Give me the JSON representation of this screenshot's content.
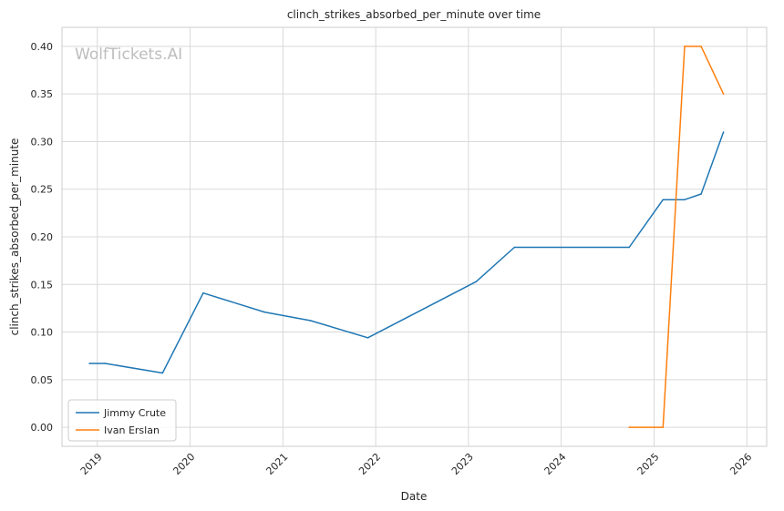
{
  "chart_data": {
    "type": "line",
    "title": "clinch_strikes_absorbed_per_minute over time",
    "xlabel": "Date",
    "ylabel": "clinch_strikes_absorbed_per_minute",
    "watermark": "WolfTickets.AI",
    "xlim": [
      "2018-08-15",
      "2026-03-20"
    ],
    "ylim": [
      -0.02,
      0.42
    ],
    "x_ticks": [
      "2019",
      "2020",
      "2021",
      "2022",
      "2023",
      "2024",
      "2025",
      "2026"
    ],
    "y_ticks": [
      "0.00",
      "0.05",
      "0.10",
      "0.15",
      "0.20",
      "0.25",
      "0.30",
      "0.35",
      "0.40"
    ],
    "grid": true,
    "legend_position": "bottom-left",
    "series": [
      {
        "name": "Jimmy Crute",
        "color": "#1f77b4",
        "points": [
          [
            "2018-12-01",
            0.067
          ],
          [
            "2019-02-01",
            0.067
          ],
          [
            "2019-09-15",
            0.057
          ],
          [
            "2020-02-22",
            0.141
          ],
          [
            "2020-10-20",
            0.121
          ],
          [
            "2021-04-20",
            0.112
          ],
          [
            "2021-12-01",
            0.094
          ],
          [
            "2023-02-01",
            0.153
          ],
          [
            "2023-07-01",
            0.189
          ],
          [
            "2024-09-25",
            0.189
          ],
          [
            "2025-02-05",
            0.239
          ],
          [
            "2025-05-01",
            0.239
          ],
          [
            "2025-07-05",
            0.245
          ],
          [
            "2025-10-01",
            0.31
          ]
        ]
      },
      {
        "name": "Ivan Erslan",
        "color": "#ff7f0e",
        "points": [
          [
            "2024-09-25",
            0.0
          ],
          [
            "2025-02-05",
            0.0
          ],
          [
            "2025-05-01",
            0.4
          ],
          [
            "2025-07-05",
            0.4
          ],
          [
            "2025-10-01",
            0.35
          ]
        ]
      }
    ]
  }
}
